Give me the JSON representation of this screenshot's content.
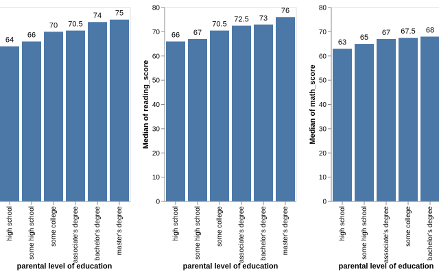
{
  "chart_data": [
    {
      "type": "bar",
      "x_label": "parental level of education",
      "categories": [
        "high school",
        "some high school",
        "some college",
        "associate's degree",
        "bachelor's degree",
        "master's degree"
      ],
      "values": [
        64,
        66,
        70,
        70.5,
        74,
        75
      ],
      "color": "#4c78a8",
      "ylim": [
        0,
        80
      ]
    },
    {
      "type": "bar",
      "x_label": "parental level of education",
      "y_label": "Median of reading_score",
      "categories": [
        "high school",
        "some high school",
        "some college",
        "associate's degree",
        "bachelor's degree",
        "master's degree"
      ],
      "values": [
        66,
        67,
        70.5,
        72.5,
        73,
        76
      ],
      "color": "#4c78a8",
      "ylim": [
        0,
        80
      ],
      "yticks": [
        0,
        10,
        20,
        30,
        40,
        50,
        60,
        70,
        80
      ]
    },
    {
      "type": "bar",
      "x_label": "parental level of education",
      "y_label": "Median of math_score",
      "categories": [
        "high school",
        "some high school",
        "associate's degree",
        "some college",
        "bachelor's degree"
      ],
      "values": [
        63,
        65,
        67,
        67.5,
        68
      ],
      "color": "#4c78a8",
      "ylim": [
        0,
        80
      ],
      "yticks": [
        0,
        10,
        20,
        30,
        40,
        50,
        60,
        70,
        80
      ]
    }
  ]
}
